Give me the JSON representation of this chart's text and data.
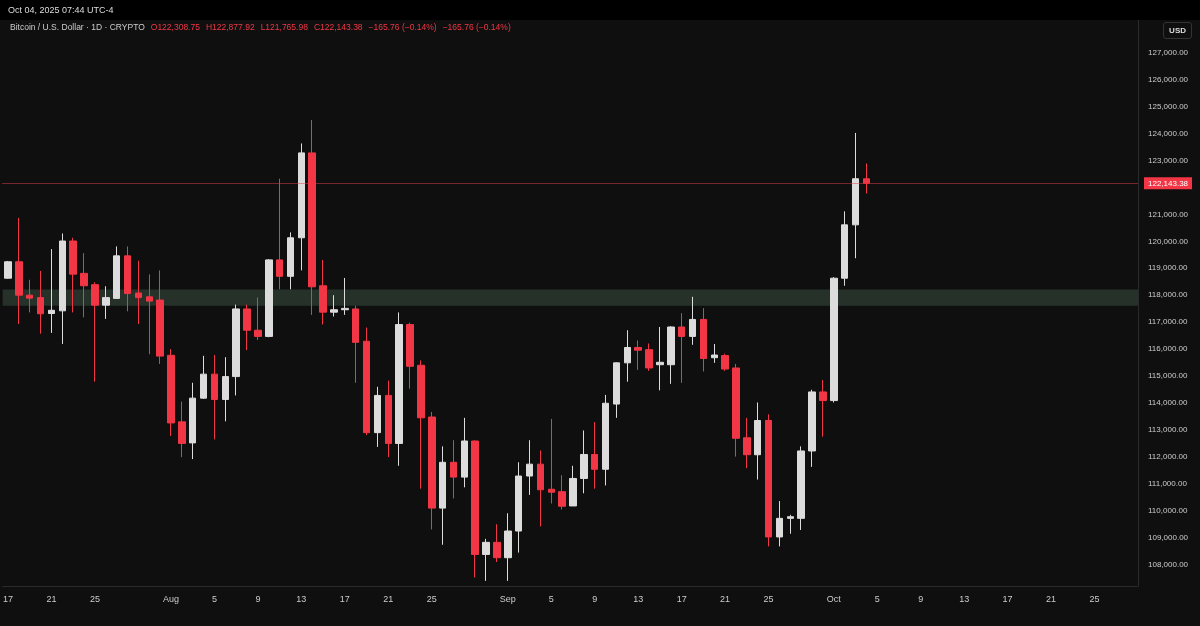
{
  "chart_data": {
    "type": "candlestick",
    "title": "Bitcoin / U.S. Dollar · 1D · CRYPTO",
    "ylabel": "USD",
    "annotations": [
      "Oct 04, 2025 07:44 UTC-4",
      "O122,308.75",
      "H122,877.92",
      "L121,765.98",
      "C122,143.38",
      "−165.76 (−0.14%)",
      "−165.76 (−0.14%)"
    ],
    "x": [
      "2025-07-17",
      "2025-07-18",
      "2025-07-19",
      "2025-07-20",
      "2025-07-21",
      "2025-07-22",
      "2025-07-23",
      "2025-07-24",
      "2025-07-25",
      "2025-07-26",
      "2025-07-27",
      "2025-07-28",
      "2025-07-29",
      "2025-07-30",
      "2025-07-31",
      "2025-08-01",
      "2025-08-02",
      "2025-08-03",
      "2025-08-04",
      "2025-08-05",
      "2025-08-06",
      "2025-08-07",
      "2025-08-08",
      "2025-08-09",
      "2025-08-10",
      "2025-08-11",
      "2025-08-12",
      "2025-08-13",
      "2025-08-14",
      "2025-08-15",
      "2025-08-16",
      "2025-08-17",
      "2025-08-18",
      "2025-08-19",
      "2025-08-20",
      "2025-08-21",
      "2025-08-22",
      "2025-08-23",
      "2025-08-24",
      "2025-08-25",
      "2025-08-26",
      "2025-08-27",
      "2025-08-28",
      "2025-08-29",
      "2025-08-30",
      "2025-08-31",
      "2025-09-01",
      "2025-09-02",
      "2025-09-03",
      "2025-09-04",
      "2025-09-05",
      "2025-09-06",
      "2025-09-07",
      "2025-09-08",
      "2025-09-09",
      "2025-09-10",
      "2025-09-11",
      "2025-09-12",
      "2025-09-13",
      "2025-09-14",
      "2025-09-15",
      "2025-09-16",
      "2025-09-17",
      "2025-09-18",
      "2025-09-19",
      "2025-09-20",
      "2025-09-21",
      "2025-09-22",
      "2025-09-23",
      "2025-09-24",
      "2025-09-25",
      "2025-09-26",
      "2025-09-27",
      "2025-09-28",
      "2025-09-29",
      "2025-09-30",
      "2025-10-01",
      "2025-10-02",
      "2025-10-03",
      "2025-10-04"
    ],
    "ohlc": [
      [
        118620,
        119260,
        118600,
        119230
      ],
      [
        119230,
        120860,
        116920,
        117990
      ],
      [
        117990,
        118560,
        117350,
        117880
      ],
      [
        117900,
        118890,
        116560,
        117300
      ],
      [
        117310,
        119700,
        116590,
        117430
      ],
      [
        117410,
        120280,
        116180,
        120000
      ],
      [
        120000,
        120120,
        117350,
        118770
      ],
      [
        118800,
        119550,
        117170,
        118340
      ],
      [
        118380,
        118470,
        114780,
        117620
      ],
      [
        117620,
        118320,
        117110,
        117900
      ],
      [
        117870,
        119800,
        117870,
        119450
      ],
      [
        119450,
        119800,
        117390,
        118050
      ],
      [
        118070,
        119270,
        116920,
        117900
      ],
      [
        117930,
        118760,
        115800,
        117770
      ],
      [
        117810,
        118910,
        115440,
        115730
      ],
      [
        115760,
        115990,
        112770,
        113250
      ],
      [
        113290,
        114040,
        111980,
        112490
      ],
      [
        112510,
        114740,
        111910,
        114170
      ],
      [
        114170,
        115740,
        114140,
        115060
      ],
      [
        115060,
        115770,
        112640,
        114120
      ],
      [
        114120,
        115690,
        113310,
        114970
      ],
      [
        114970,
        117640,
        114270,
        117480
      ],
      [
        117480,
        117640,
        115950,
        116690
      ],
      [
        116690,
        117900,
        116330,
        116460
      ],
      [
        116460,
        119330,
        116430,
        119300
      ],
      [
        119300,
        122310,
        118210,
        118690
      ],
      [
        118690,
        120320,
        118210,
        120120
      ],
      [
        120120,
        123620,
        118910,
        123270
      ],
      [
        123270,
        124490,
        117260,
        118300
      ],
      [
        118340,
        119300,
        116900,
        117360
      ],
      [
        117360,
        117990,
        117200,
        117450
      ],
      [
        117450,
        118630,
        117260,
        117500
      ],
      [
        117480,
        117600,
        114740,
        116240
      ],
      [
        116280,
        116790,
        112800,
        112890
      ],
      [
        112890,
        114590,
        112360,
        114270
      ],
      [
        114270,
        114820,
        111980,
        112490
      ],
      [
        112490,
        117350,
        111660,
        116900
      ],
      [
        116900,
        116970,
        114520,
        115350
      ],
      [
        115390,
        115570,
        110810,
        113440
      ],
      [
        113470,
        113660,
        109300,
        110090
      ],
      [
        110090,
        112380,
        108730,
        111790
      ],
      [
        111790,
        112610,
        110450,
        111240
      ],
      [
        111240,
        113440,
        110860,
        112580
      ],
      [
        112580,
        112600,
        107520,
        108370
      ],
      [
        108370,
        108950,
        107390,
        108820
      ],
      [
        108820,
        109490,
        108090,
        108250
      ],
      [
        108250,
        109900,
        107390,
        109240
      ],
      [
        109240,
        111790,
        108440,
        111280
      ],
      [
        111280,
        112610,
        110580,
        111720
      ],
      [
        111720,
        112230,
        109410,
        110770
      ],
      [
        110790,
        113400,
        110260,
        110680
      ],
      [
        110700,
        111310,
        110040,
        110160
      ],
      [
        110170,
        111660,
        110170,
        111190
      ],
      [
        111190,
        112970,
        110640,
        112080
      ],
      [
        112080,
        113280,
        110810,
        111530
      ],
      [
        111530,
        114290,
        110930,
        113980
      ],
      [
        113950,
        115500,
        113440,
        115480
      ],
      [
        115480,
        116690,
        114780,
        116050
      ],
      [
        116050,
        116310,
        115220,
        115950
      ],
      [
        115970,
        116200,
        115180,
        115290
      ],
      [
        115410,
        116810,
        114460,
        115500
      ],
      [
        115410,
        116840,
        114700,
        116810
      ],
      [
        116810,
        117320,
        114740,
        116460
      ],
      [
        116460,
        117930,
        116150,
        117090
      ],
      [
        117090,
        117510,
        115160,
        115640
      ],
      [
        115670,
        116180,
        115480,
        115770
      ],
      [
        115750,
        115820,
        115180,
        115250
      ],
      [
        115290,
        115440,
        112000,
        112680
      ],
      [
        112700,
        113440,
        111570,
        112070
      ],
      [
        112070,
        114010,
        111150,
        113340
      ],
      [
        113340,
        113570,
        108670,
        109020
      ],
      [
        109020,
        110350,
        108670,
        109710
      ],
      [
        109710,
        109840,
        109140,
        109770
      ],
      [
        109710,
        112380,
        109280,
        112210
      ],
      [
        112210,
        114480,
        111620,
        114400
      ],
      [
        114400,
        114840,
        112740,
        114080
      ],
      [
        114080,
        118660,
        114010,
        118620
      ],
      [
        118620,
        121100,
        118340,
        120600
      ],
      [
        120600,
        124010,
        119360,
        122310
      ],
      [
        122308.75,
        122877.92,
        121765.98,
        122143.38
      ]
    ],
    "colors": [
      "#dcdcdc",
      "#f23645",
      "#f23645",
      "#f23645",
      "#dcdcdc",
      "#dcdcdc",
      "#f23645",
      "#f23645",
      "#f23645",
      "#dcdcdc",
      "#dcdcdc",
      "#f23645",
      "#f23645",
      "#f23645",
      "#f23645",
      "#f23645",
      "#f23645",
      "#dcdcdc",
      "#dcdcdc",
      "#f23645",
      "#dcdcdc",
      "#dcdcdc",
      "#f23645",
      "#f23645",
      "#dcdcdc",
      "#f23645",
      "#dcdcdc",
      "#dcdcdc",
      "#f23645",
      "#f23645",
      "#dcdcdc",
      "#dcdcdc",
      "#f23645",
      "#f23645",
      "#dcdcdc",
      "#f23645",
      "#dcdcdc",
      "#f23645",
      "#f23645",
      "#f23645",
      "#dcdcdc",
      "#f23645",
      "#dcdcdc",
      "#f23645",
      "#dcdcdc",
      "#f23645",
      "#dcdcdc",
      "#dcdcdc",
      "#dcdcdc",
      "#f23645",
      "#f23645",
      "#f23645",
      "#dcdcdc",
      "#dcdcdc",
      "#f23645",
      "#dcdcdc",
      "#dcdcdc",
      "#dcdcdc",
      "#f23645",
      "#f23645",
      "#dcdcdc",
      "#dcdcdc",
      "#f23645",
      "#dcdcdc",
      "#f23645",
      "#dcdcdc",
      "#f23645",
      "#f23645",
      "#f23645",
      "#dcdcdc",
      "#f23645",
      "#dcdcdc",
      "#dcdcdc",
      "#dcdcdc",
      "#dcdcdc",
      "#f23645",
      "#dcdcdc",
      "#dcdcdc",
      "#dcdcdc",
      "#f23645"
    ],
    "xlim": [
      "2025-07-16T12:00",
      "2025-10-29"
    ],
    "xticks": [
      {
        "value": "2025-07-17",
        "label": "17"
      },
      {
        "value": "2025-07-21",
        "label": "21"
      },
      {
        "value": "2025-07-25",
        "label": "25"
      },
      {
        "value": "2025-08-01",
        "label": "Aug"
      },
      {
        "value": "2025-08-05",
        "label": "5"
      },
      {
        "value": "2025-08-09",
        "label": "9"
      },
      {
        "value": "2025-08-13",
        "label": "13"
      },
      {
        "value": "2025-08-17",
        "label": "17"
      },
      {
        "value": "2025-08-21",
        "label": "21"
      },
      {
        "value": "2025-08-25",
        "label": "25"
      },
      {
        "value": "2025-09-01",
        "label": "Sep"
      },
      {
        "value": "2025-09-05",
        "label": "5"
      },
      {
        "value": "2025-09-09",
        "label": "9"
      },
      {
        "value": "2025-09-13",
        "label": "13"
      },
      {
        "value": "2025-09-17",
        "label": "17"
      },
      {
        "value": "2025-09-21",
        "label": "21"
      },
      {
        "value": "2025-09-25",
        "label": "25"
      },
      {
        "value": "2025-10-01",
        "label": "Oct"
      },
      {
        "value": "2025-10-05",
        "label": "5"
      },
      {
        "value": "2025-10-09",
        "label": "9"
      },
      {
        "value": "2025-10-13",
        "label": "13"
      },
      {
        "value": "2025-10-17",
        "label": "17"
      },
      {
        "value": "2025-10-21",
        "label": "21"
      },
      {
        "value": "2025-10-25",
        "label": "25"
      }
    ],
    "ylim": [
      107200,
      128200
    ],
    "yticks": [
      {
        "value": 108000,
        "label": "108,000.00"
      },
      {
        "value": 109000,
        "label": "109,000.00"
      },
      {
        "value": 110000,
        "label": "110,000.00"
      },
      {
        "value": 111000,
        "label": "111,000.00"
      },
      {
        "value": 112000,
        "label": "112,000.00"
      },
      {
        "value": 113000,
        "label": "113,000.00"
      },
      {
        "value": 114000,
        "label": "114,000.00"
      },
      {
        "value": 115000,
        "label": "115,000.00"
      },
      {
        "value": 116000,
        "label": "116,000.00"
      },
      {
        "value": 117000,
        "label": "117,000.00"
      },
      {
        "value": 118000,
        "label": "118,000.00"
      },
      {
        "value": 119000,
        "label": "119,000.00"
      },
      {
        "value": 120000,
        "label": "120,000.00"
      },
      {
        "value": 121000,
        "label": "121,000.00"
      },
      {
        "value": 123000,
        "label": "123,000.00"
      },
      {
        "value": 124000,
        "label": "124,000.00"
      },
      {
        "value": 125000,
        "label": "125,000.00"
      },
      {
        "value": 126000,
        "label": "126,000.00"
      },
      {
        "value": 127000,
        "label": "127,000.00"
      }
    ],
    "ref_lines": [
      {
        "axis": "y",
        "value": 122143.38,
        "label": "122,143.38",
        "color": "#f23645",
        "line_style": "dotted"
      }
    ],
    "bands": [
      {
        "axis": "y",
        "from": 117600,
        "to": 118200,
        "color": "#2b3a30"
      }
    ]
  }
}
